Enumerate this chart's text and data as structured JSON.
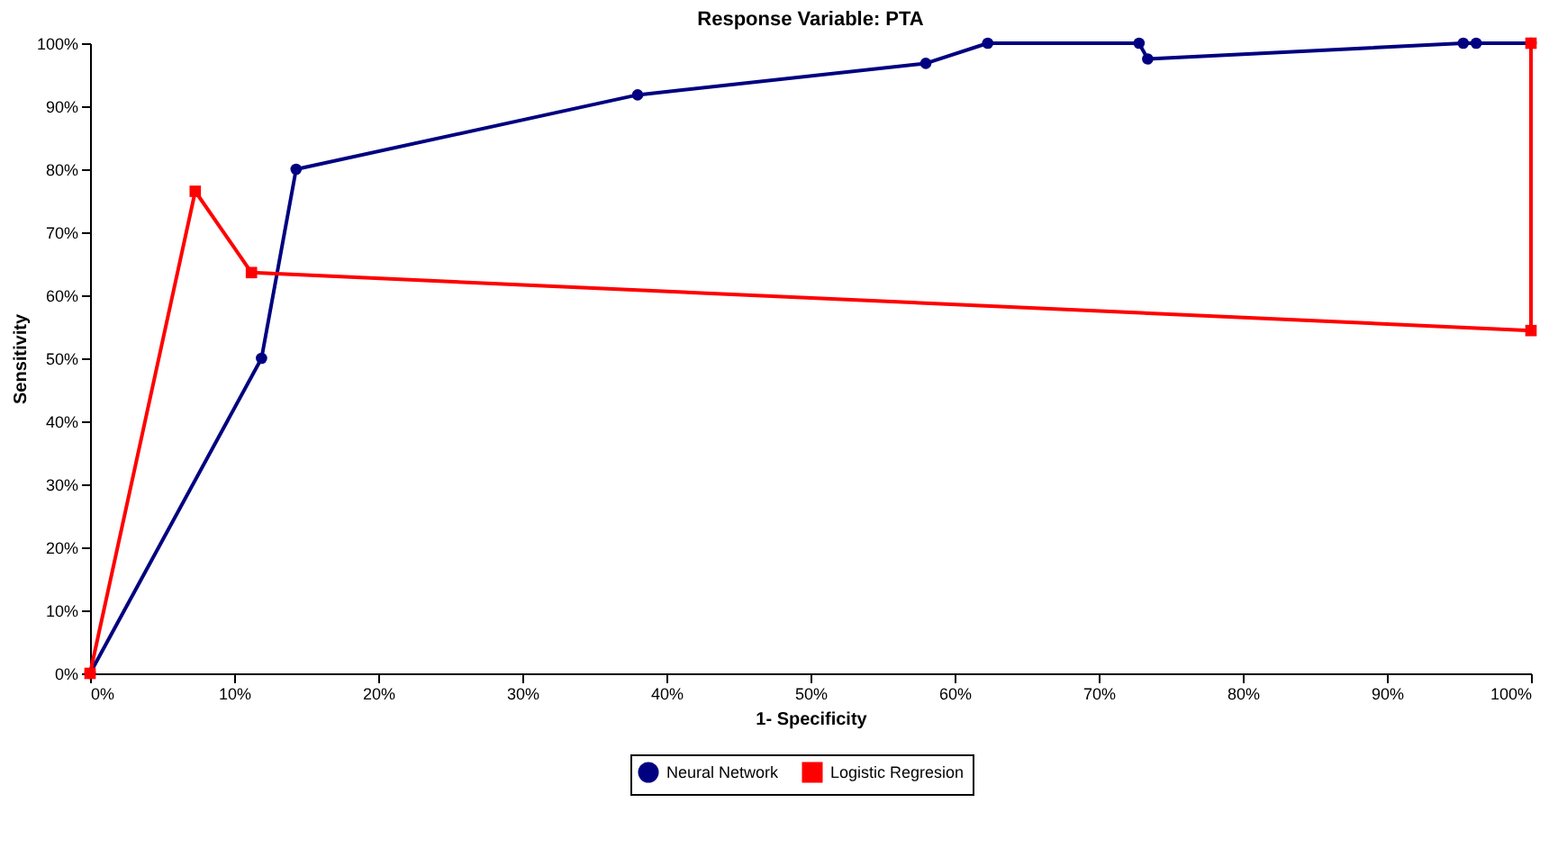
{
  "chart_data": {
    "type": "line",
    "title": "Response Variable: PTA",
    "xlabel": "1- Specificity",
    "ylabel": "Sensitivity",
    "xlim": [
      0,
      100
    ],
    "ylim": [
      0,
      100
    ],
    "xticks": [
      {
        "value": 0,
        "label": "0%"
      },
      {
        "value": 10,
        "label": "10%"
      },
      {
        "value": 20,
        "label": "20%"
      },
      {
        "value": 30,
        "label": "30%"
      },
      {
        "value": 40,
        "label": "40%"
      },
      {
        "value": 50,
        "label": "50%"
      },
      {
        "value": 60,
        "label": "60%"
      },
      {
        "value": 70,
        "label": "70%"
      },
      {
        "value": 80,
        "label": "80%"
      },
      {
        "value": 90,
        "label": "90%"
      },
      {
        "value": 100,
        "label": "100%"
      }
    ],
    "yticks": [
      {
        "value": 0,
        "label": "0%"
      },
      {
        "value": 10,
        "label": "10%"
      },
      {
        "value": 20,
        "label": "20%"
      },
      {
        "value": 30,
        "label": "30%"
      },
      {
        "value": 40,
        "label": "40%"
      },
      {
        "value": 50,
        "label": "50%"
      },
      {
        "value": 60,
        "label": "60%"
      },
      {
        "value": 70,
        "label": "70%"
      },
      {
        "value": 80,
        "label": "80%"
      },
      {
        "value": 90,
        "label": "90%"
      },
      {
        "value": 100,
        "label": "100%"
      }
    ],
    "grid": false,
    "legend": "bottom",
    "series": [
      {
        "name": "Neural Network",
        "color": "#000080",
        "marker": "circle",
        "x": [
          0,
          11.9,
          14.3,
          38.0,
          58.0,
          62.3,
          72.8,
          73.4,
          95.3,
          96.2,
          100
        ],
        "values": [
          0,
          50,
          80,
          91.8,
          96.8,
          100,
          100,
          97.5,
          100,
          100,
          100
        ]
      },
      {
        "name": "Logistic Regresion",
        "color": "#ff0000",
        "marker": "square",
        "x": [
          0,
          7.3,
          11.2,
          100,
          100
        ],
        "values": [
          0,
          76.5,
          63.6,
          54.4,
          100
        ]
      }
    ]
  }
}
